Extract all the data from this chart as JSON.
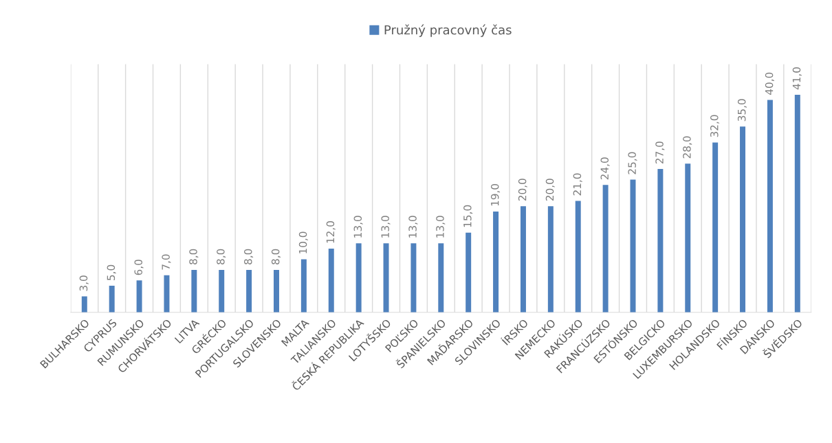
{
  "chart_data": {
    "type": "bar",
    "categories": [
      "BULHARSKO",
      "CYPRUS",
      "RUMUNSKO",
      "CHORVÁTSKO",
      "LITVA",
      "GRÉCKO",
      "PORTUGALSKO",
      "SLOVENSKO",
      "MALTA",
      "TALIANSKO",
      "ČESKÁ REPUBLIKA",
      "LOTYŠSKO",
      "POĽSKO",
      "ŠPANIELSKO",
      "MAĎARSKO",
      "SLOVINSKO",
      "ÍRSKO",
      "NEMECKO",
      "RAKÚSKO",
      "FRANCÚZSKO",
      "ESTÓNSKO",
      "BELGICKO",
      "LUXEMBURSKO",
      "HOLANDSKO",
      "FÍNSKO",
      "DÁNSKO",
      "ŠVÉDSKO"
    ],
    "series": [
      {
        "name": "Pružný pracovný čas",
        "color": "#4f81bd",
        "values": [
          3,
          5,
          6,
          7,
          8,
          8,
          8,
          8,
          10,
          12,
          13,
          13,
          13,
          13,
          15,
          19,
          20,
          20,
          21,
          24,
          25,
          27,
          28,
          32,
          35,
          40,
          41
        ],
        "value_labels": [
          "3,0",
          "5,0",
          "6,0",
          "7,0",
          "8,0",
          "8,0",
          "8,0",
          "8,0",
          "10,0",
          "12,0",
          "13,0",
          "13,0",
          "13,0",
          "13,0",
          "15,0",
          "19,0",
          "20,0",
          "20,0",
          "21,0",
          "24,0",
          "25,0",
          "27,0",
          "28,0",
          "32,0",
          "35,0",
          "40,0",
          "41,0"
        ]
      }
    ],
    "legend": "top",
    "grid": "x",
    "tick_labels": "x"
  }
}
